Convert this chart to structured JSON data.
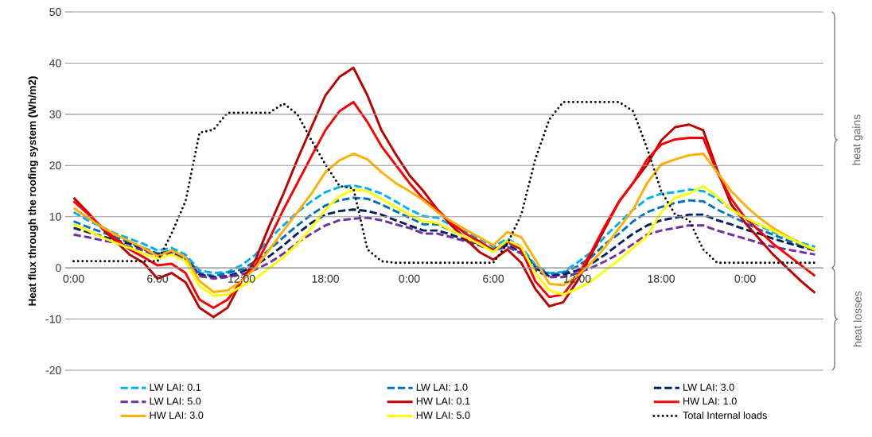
{
  "chart_data": {
    "type": "line",
    "ylabel": "Heat flux through the roofing system (Wh/m2)",
    "categories": [
      "0:00",
      null,
      null,
      null,
      null,
      null,
      "6:00",
      null,
      null,
      null,
      null,
      null,
      "12:00",
      null,
      null,
      null,
      null,
      null,
      "18:00",
      null,
      null,
      null,
      null,
      null,
      "0:00",
      null,
      null,
      null,
      null,
      null,
      "6:00",
      null,
      null,
      null,
      null,
      null,
      "12:00",
      null,
      null,
      null,
      null,
      null,
      "18:00",
      null,
      null,
      null,
      null,
      null,
      "0:00",
      null,
      null,
      null,
      null,
      null
    ],
    "ylim": [
      -20,
      50
    ],
    "yticks": [
      -20,
      -10,
      0,
      10,
      20,
      30,
      40,
      50
    ],
    "grid": "y",
    "legend": "bottom",
    "marker": "none",
    "annotations": [
      "heat gains",
      "heat losses"
    ],
    "series": [
      {
        "name": "LW LAI: 0.1",
        "color": "#00b0f0",
        "line_style": "dashed",
        "values": [
          10.9,
          9.3,
          8.0,
          6.7,
          5.7,
          4.7,
          3.4,
          3.9,
          2.6,
          -0.5,
          -1.0,
          -0.8,
          0.5,
          2.6,
          5.7,
          8.3,
          10.9,
          13,
          14.8,
          15.8,
          16.1,
          15.5,
          14.5,
          13,
          11.4,
          10.1,
          9.8,
          8.3,
          7.0,
          5.7,
          4.1,
          5.7,
          4.1,
          0.5,
          -1.0,
          -0.8,
          1.0,
          3.1,
          6.2,
          8.8,
          11.4,
          13.5,
          14.5,
          14.8,
          15.3,
          15,
          13.5,
          11.4,
          9.8,
          8.3,
          7.0,
          6.0,
          4.9,
          4.1
        ]
      },
      {
        "name": "LW LAI: 1.0",
        "color": "#0070c0",
        "line_style": "dashed",
        "values": [
          9.1,
          8.0,
          7.0,
          6.0,
          4.9,
          3.9,
          2.8,
          3.4,
          2.1,
          -1.0,
          -1.6,
          -1.0,
          -0.3,
          1.3,
          3.6,
          6.0,
          8.3,
          10.4,
          12.2,
          13.2,
          13.7,
          13.5,
          12.4,
          11.1,
          9.8,
          8.5,
          8.5,
          7.3,
          6.0,
          4.9,
          3.6,
          4.9,
          3.6,
          0.3,
          -1.3,
          -1.0,
          0.3,
          2.1,
          4.7,
          6.7,
          9.1,
          10.9,
          11.9,
          12.7,
          13.2,
          13,
          11.4,
          10.1,
          8.8,
          7.5,
          6.5,
          5.4,
          4.4,
          3.6
        ]
      },
      {
        "name": "LW LAI: 3.0",
        "color": "#002060",
        "line_style": "dashed",
        "values": [
          7.8,
          7.0,
          6.2,
          5.4,
          4.7,
          3.6,
          2.6,
          3.1,
          1.8,
          -1.3,
          -1.8,
          -1.6,
          -0.8,
          0.5,
          2.3,
          4.4,
          6.7,
          8.8,
          10.4,
          11.1,
          11.4,
          11.1,
          10.4,
          9.3,
          8.3,
          7.3,
          7.3,
          6.5,
          5.4,
          4.7,
          3.4,
          4.4,
          3.1,
          0,
          -1.6,
          -1.3,
          -0.5,
          0.8,
          2.6,
          4.7,
          6.7,
          8.3,
          9.3,
          9.8,
          10.4,
          10.4,
          9.3,
          8.5,
          7.5,
          6.7,
          5.7,
          4.9,
          4.1,
          3.4
        ]
      },
      {
        "name": "LW LAI: 5.0",
        "color": "#7030a0",
        "line_style": "dashed",
        "values": [
          6.5,
          6.0,
          5.4,
          4.9,
          4.1,
          3.4,
          2.3,
          2.8,
          1.6,
          -1.6,
          -2.1,
          -1.8,
          -1.3,
          -0.3,
          1.0,
          2.8,
          4.9,
          6.7,
          8.3,
          9.3,
          9.6,
          9.8,
          9.3,
          8.5,
          7.8,
          6.7,
          6.7,
          6.0,
          5.2,
          4.4,
          3.4,
          4.1,
          2.8,
          -0.5,
          -1.8,
          -1.8,
          -1.0,
          0,
          1.3,
          2.8,
          4.7,
          6.5,
          7.3,
          7.8,
          8.3,
          8.3,
          7.3,
          6.5,
          5.7,
          4.9,
          4.1,
          3.6,
          3.1,
          2.6
        ]
      },
      {
        "name": "HW LAI: 0.1",
        "color": "#c00000",
        "line_style": "solid",
        "values": [
          13.7,
          10.9,
          7.8,
          5.2,
          2.6,
          1.0,
          -2.1,
          -1.0,
          -2.8,
          -7.8,
          -9.6,
          -7.8,
          -2.6,
          1.6,
          8.3,
          14.5,
          21.2,
          27.5,
          33.7,
          37.3,
          39.1,
          33.7,
          26.9,
          22.3,
          18.1,
          15,
          11.4,
          8.3,
          5.7,
          3.1,
          1.6,
          3.6,
          1.0,
          -4.1,
          -7.5,
          -6.7,
          -2.6,
          2.6,
          7.8,
          13,
          16.6,
          20.2,
          24.9,
          27.5,
          28,
          26.9,
          19.2,
          12.4,
          8.8,
          5.7,
          2.6,
          0,
          -2.6,
          -4.9
        ]
      },
      {
        "name": "HW LAI: 1.0",
        "color": "#ff0000",
        "line_style": "solid",
        "values": [
          13,
          10.6,
          8.0,
          5.7,
          3.6,
          2.1,
          0.5,
          0.8,
          -1.0,
          -6.2,
          -7.8,
          -6.2,
          -2.6,
          0.5,
          5.7,
          11.4,
          16.6,
          21.8,
          26.9,
          30.6,
          32.4,
          28.5,
          23.8,
          20.2,
          16.6,
          13.5,
          11.4,
          8.8,
          6.7,
          5.2,
          3.4,
          5.2,
          3.6,
          -2.6,
          -5.7,
          -5.2,
          -1.6,
          3.1,
          8.3,
          13,
          16.6,
          21.2,
          24.1,
          25.1,
          25.4,
          25.4,
          18.7,
          13.5,
          9.8,
          7.3,
          4.7,
          2.6,
          0.5,
          -1.6
        ]
      },
      {
        "name": "HW LAI: 3.0",
        "color": "#ffb000",
        "line_style": "solid",
        "values": [
          11.7,
          9.8,
          8.0,
          6.5,
          5.2,
          3.9,
          2.3,
          3.4,
          2.1,
          -2.6,
          -4.7,
          -4.4,
          -2.6,
          0,
          3.6,
          7.3,
          10.9,
          14.5,
          18.7,
          21,
          22.3,
          21.2,
          18.7,
          16.6,
          15,
          13.2,
          10.9,
          9.1,
          7.5,
          6.0,
          4.4,
          7.0,
          6.0,
          1.6,
          -3.1,
          -3.4,
          -1.6,
          1.0,
          4.1,
          7.8,
          11.4,
          16.6,
          20.2,
          21.2,
          22,
          22.3,
          18.7,
          15,
          12.2,
          9.8,
          7.8,
          6.2,
          4.7,
          3.4
        ]
      },
      {
        "name": "HW LAI: 5.0",
        "color": "#ffff00",
        "line_style": "solid",
        "values": [
          8.5,
          7.3,
          6.0,
          4.9,
          3.9,
          2.8,
          1.8,
          2.6,
          1.3,
          -3.6,
          -5.4,
          -5.2,
          -3.6,
          -2.1,
          0,
          2.1,
          4.7,
          7.8,
          11.4,
          14,
          15.3,
          15,
          13.5,
          11.9,
          10.4,
          9.1,
          8.8,
          7.3,
          6.0,
          4.7,
          3.1,
          5.4,
          4.1,
          -1.0,
          -4.4,
          -5.2,
          -4.1,
          -2.6,
          -0.5,
          1.6,
          3.9,
          6.2,
          10.9,
          13.7,
          14.5,
          16,
          14,
          11.4,
          9.8,
          8.5,
          7.3,
          6.0,
          4.7,
          3.6
        ]
      },
      {
        "name": "Total Internal loads",
        "color": "#000000",
        "line_style": "dotted",
        "values": [
          1.3,
          1.3,
          1.3,
          1.3,
          1.3,
          1.3,
          1.3,
          6.7,
          13,
          26.4,
          27,
          30.3,
          30.3,
          30.3,
          30.3,
          32.1,
          30,
          24.9,
          20.2,
          16,
          15.5,
          3.6,
          1.3,
          1.0,
          1.0,
          1.0,
          1.0,
          1.0,
          1.0,
          1.0,
          1.0,
          4.7,
          10.4,
          21.2,
          29,
          32.4,
          32.4,
          32.4,
          32.4,
          32.4,
          30.6,
          23.3,
          15,
          10.4,
          9.3,
          3.6,
          1.0,
          1.0,
          1.0,
          1.0,
          1.0,
          1.0,
          1.0,
          1.0
        ]
      }
    ]
  }
}
